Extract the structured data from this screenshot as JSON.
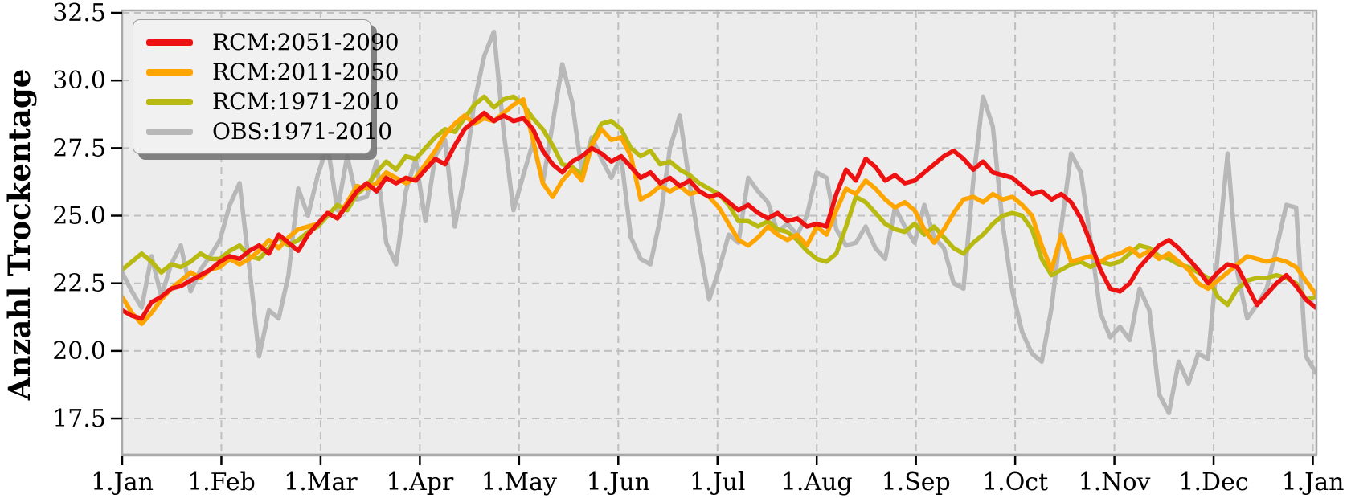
{
  "figure": {
    "ylabel": "Anzahl Trockentage",
    "background_color": "#ffffff",
    "plot_background_color": "#ececec",
    "grid_color": "#bfbfbf",
    "spine_color": "#a9a9a9",
    "tick_color": "#000000",
    "text_color": "#000000"
  },
  "legend": {
    "position": "upper left",
    "entries": [
      {
        "label": "RCM:2051-2090",
        "color": "#ee1111"
      },
      {
        "label": "RCM:2011-2050",
        "color": "#ffa500"
      },
      {
        "label": "RCM:1971-2010",
        "color": "#b8ba12"
      },
      {
        "label": "OBS:1971-2010",
        "color": "#b8b8b8"
      }
    ]
  },
  "chart_data": {
    "type": "line",
    "title": "",
    "xlabel": "",
    "ylabel": "Anzahl Trockentage",
    "x_tick_labels": [
      "1.Jan",
      "1.Feb",
      "1.Mar",
      "1.Apr",
      "1.May",
      "1.Jun",
      "1.Jul",
      "1.Aug",
      "1.Sep",
      "1.Oct",
      "1.Nov",
      "1.Dec",
      "1.Jan"
    ],
    "y_ticks": [
      17.5,
      20.0,
      22.5,
      25.0,
      27.5,
      30.0,
      32.5
    ],
    "ylim": [
      16.2,
      32.6
    ],
    "x_range_days": [
      0,
      366
    ],
    "sample_step_days": 3,
    "grid": true,
    "grid_style": "dashed",
    "legend_position": "upper left",
    "series": [
      {
        "name": "RCM:2051-2090",
        "color": "#ee1111",
        "values": [
          21.5,
          21.3,
          21.2,
          21.8,
          22.0,
          22.3,
          22.4,
          22.6,
          22.8,
          23.0,
          23.3,
          23.5,
          23.4,
          23.7,
          23.9,
          23.6,
          24.3,
          24.0,
          23.7,
          24.3,
          24.7,
          25.1,
          24.9,
          25.4,
          25.9,
          26.2,
          25.9,
          26.4,
          26.2,
          26.4,
          26.3,
          26.7,
          27.1,
          26.9,
          27.6,
          28.2,
          28.5,
          28.8,
          28.5,
          28.7,
          28.5,
          28.6,
          28.2,
          27.4,
          26.9,
          26.6,
          27.0,
          27.2,
          27.5,
          27.3,
          27.0,
          27.2,
          26.8,
          26.4,
          26.6,
          26.2,
          26.4,
          26.1,
          26.3,
          25.9,
          25.7,
          25.8,
          25.5,
          25.2,
          25.4,
          25.1,
          24.9,
          25.1,
          24.8,
          24.9,
          24.6,
          24.7,
          24.6,
          25.8,
          26.7,
          26.3,
          27.1,
          26.8,
          26.3,
          26.5,
          26.2,
          26.3,
          26.6,
          26.9,
          27.2,
          27.4,
          27.1,
          26.7,
          27.0,
          26.6,
          26.5,
          26.4,
          26.1,
          25.8,
          25.9,
          25.6,
          25.8,
          25.5,
          24.9,
          24.0,
          23.0,
          22.3,
          22.2,
          22.5,
          23.1,
          23.5,
          23.9,
          24.1,
          23.8,
          23.4,
          23.0,
          22.5,
          22.9,
          23.2,
          23.1,
          22.4,
          21.7,
          22.1,
          22.5,
          22.8,
          22.4,
          21.9,
          21.6
        ]
      },
      {
        "name": "RCM:2011-2050",
        "color": "#ffa500",
        "values": [
          22.0,
          21.4,
          21.0,
          21.4,
          21.9,
          22.3,
          22.6,
          22.9,
          22.7,
          23.0,
          23.1,
          23.4,
          23.2,
          23.4,
          23.7,
          24.1,
          23.8,
          24.2,
          24.5,
          24.6,
          24.7,
          25.1,
          24.9,
          25.5,
          26.1,
          26.0,
          26.2,
          26.6,
          26.4,
          26.2,
          26.4,
          26.9,
          27.4,
          28.0,
          28.4,
          28.7,
          28.4,
          28.6,
          28.5,
          28.8,
          29.1,
          29.3,
          27.8,
          26.2,
          25.7,
          26.3,
          26.7,
          26.3,
          27.6,
          28.2,
          27.8,
          27.9,
          27.2,
          25.6,
          25.8,
          26.1,
          25.9,
          26.1,
          25.8,
          25.9,
          25.7,
          25.3,
          24.7,
          24.1,
          23.9,
          24.2,
          24.6,
          24.3,
          24.1,
          24.3,
          23.9,
          24.6,
          24.3,
          25.2,
          26.0,
          25.8,
          26.3,
          26.0,
          25.6,
          25.3,
          25.5,
          25.2,
          24.5,
          24.0,
          24.5,
          25.1,
          25.6,
          25.7,
          25.5,
          25.8,
          25.6,
          25.7,
          25.4,
          25.0,
          23.9,
          23.0,
          24.3,
          23.3,
          23.4,
          23.5,
          23.3,
          23.5,
          23.6,
          23.8,
          23.5,
          23.7,
          23.4,
          23.6,
          23.3,
          23.0,
          22.5,
          22.3,
          22.6,
          22.9,
          23.2,
          23.5,
          23.4,
          23.3,
          23.4,
          23.3,
          23.1,
          22.6,
          22.1
        ]
      },
      {
        "name": "RCM:1971-2010",
        "color": "#b8ba12",
        "values": [
          23.0,
          23.3,
          23.6,
          23.3,
          22.9,
          23.2,
          23.1,
          23.3,
          23.6,
          23.4,
          23.4,
          23.7,
          23.9,
          23.5,
          23.4,
          23.8,
          24.2,
          23.9,
          24.1,
          24.4,
          24.6,
          25.0,
          25.4,
          25.2,
          25.8,
          26.1,
          26.6,
          27.0,
          26.7,
          27.2,
          27.1,
          27.5,
          27.9,
          28.2,
          28.1,
          28.6,
          29.1,
          29.4,
          29.0,
          29.3,
          29.4,
          29.1,
          28.6,
          28.2,
          27.6,
          26.9,
          26.8,
          26.5,
          27.7,
          28.4,
          28.5,
          28.2,
          27.5,
          27.2,
          27.4,
          26.9,
          27.0,
          26.7,
          26.5,
          26.2,
          26.0,
          25.8,
          25.4,
          24.8,
          24.8,
          24.6,
          24.8,
          24.5,
          24.4,
          24.1,
          23.7,
          23.4,
          23.3,
          23.6,
          24.6,
          25.7,
          25.5,
          25.1,
          24.7,
          24.5,
          24.4,
          24.7,
          24.3,
          24.6,
          24.2,
          23.8,
          23.6,
          24.0,
          24.3,
          24.7,
          25.0,
          25.1,
          25.0,
          24.5,
          23.4,
          22.8,
          23.0,
          23.2,
          23.3,
          23.1,
          23.3,
          23.2,
          23.3,
          23.6,
          23.9,
          23.8,
          23.5,
          23.4,
          23.2,
          23.1,
          22.9,
          22.7,
          22.0,
          21.7,
          22.3,
          22.6,
          22.7,
          22.7,
          22.8,
          22.7,
          22.5,
          21.9,
          22.0
        ]
      },
      {
        "name": "OBS:1971-2010",
        "color": "#b8b8b8",
        "values": [
          22.9,
          22.2,
          21.6,
          23.5,
          22.0,
          23.2,
          23.9,
          22.2,
          23.0,
          23.5,
          24.1,
          25.4,
          26.2,
          23.1,
          19.8,
          21.5,
          21.2,
          22.8,
          26.0,
          25.0,
          26.5,
          27.6,
          25.2,
          27.2,
          25.6,
          25.7,
          27.0,
          24.0,
          23.2,
          25.9,
          27.1,
          24.8,
          27.2,
          27.8,
          24.6,
          26.5,
          29.2,
          30.9,
          31.8,
          28.1,
          25.2,
          26.5,
          27.7,
          26.2,
          28.4,
          30.6,
          29.2,
          26.6,
          27.9,
          27.1,
          26.4,
          27.2,
          24.2,
          23.4,
          23.2,
          24.9,
          27.5,
          28.7,
          26.2,
          23.9,
          21.9,
          23.0,
          24.3,
          24.0,
          26.4,
          25.9,
          25.5,
          24.4,
          24.7,
          24.3,
          25.0,
          26.6,
          26.4,
          24.5,
          23.9,
          24.0,
          24.6,
          23.8,
          23.4,
          25.3,
          24.6,
          24.0,
          25.4,
          24.2,
          23.8,
          22.5,
          22.3,
          26.3,
          29.4,
          28.3,
          24.7,
          22.2,
          20.7,
          19.9,
          19.6,
          21.6,
          24.6,
          27.3,
          26.6,
          24.1,
          21.4,
          20.5,
          20.9,
          20.4,
          22.3,
          21.5,
          18.4,
          17.7,
          19.6,
          18.8,
          19.9,
          19.7,
          23.6,
          27.3,
          22.9,
          21.2,
          21.7,
          22.3,
          23.8,
          25.4,
          25.3,
          19.8,
          19.2
        ]
      }
    ]
  }
}
